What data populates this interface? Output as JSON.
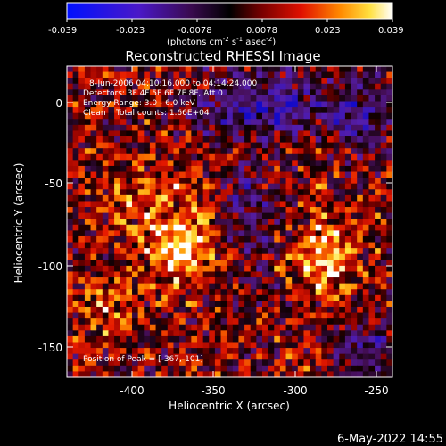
{
  "colorbar": {
    "ticks": [
      "-0.039",
      "-0.023",
      "-0.0078",
      "0.0078",
      "0.023",
      "0.039"
    ],
    "units_main": "(photons cm",
    "units_sup1": "-2",
    "units_s": " s",
    "units_sup2": "-1",
    "units_asec": " asec",
    "units_sup3": "-2",
    "units_close": ")"
  },
  "title": "Reconstructed RHESSI Image",
  "annotations": {
    "line1": "8-Jun-2006 04:10:16.000 to 04:14:24.000",
    "line2": "Detectors: 3F 4F 5F 6F 7F 8F, Att 0",
    "line3": "Energy Range: 3.0 - 6.0 keV",
    "line4": "Clean    Total counts: 1.66E+04",
    "peak": "Position of Peak = [-367,-101]"
  },
  "axes": {
    "xlabel": "Heliocentric X (arcsec)",
    "ylabel": "Heliocentric Y (arcsec)",
    "xticks": [
      "-400",
      "-350",
      "-300",
      "-250"
    ],
    "yticks": [
      "0",
      "-50",
      "-100",
      "-150"
    ]
  },
  "footer": {
    "date": "6-May-2022 14:55"
  },
  "chart_data": {
    "type": "heatmap",
    "title": "Reconstructed RHESSI Image",
    "xlabel": "Heliocentric X (arcsec)",
    "ylabel": "Heliocentric Y (arcsec)",
    "xlim": [
      -437,
      -249
    ],
    "ylim": [
      -168,
      20
    ],
    "zlim": [
      -0.039,
      0.039
    ],
    "peak": [
      -367,
      -101
    ],
    "colorscale": [
      "#0000ff",
      "#5a1aa0",
      "#000000",
      "#8b0000",
      "#ff2a00",
      "#ffa000",
      "#ffff60",
      "#ffffff"
    ]
  }
}
